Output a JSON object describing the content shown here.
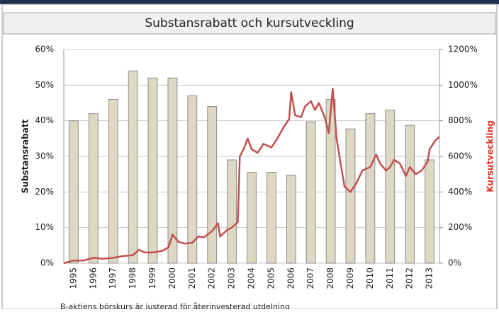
{
  "chart_data": {
    "type": "bar",
    "title": "Substansrabatt och kursutveckling",
    "y_label": "Substansrabatt",
    "y2_label": "Kursutveckling",
    "footnote": "B-aktiens börskurs är justerad för återinvesterad utdelning",
    "categories": [
      "1995",
      "1996",
      "1997",
      "1998",
      "1999",
      "2000",
      "2001",
      "2002",
      "2003",
      "2004",
      "2005",
      "2006",
      "2007",
      "2008",
      "2009",
      "2010",
      "2011",
      "2012",
      "2013"
    ],
    "xlim": [
      1994.5,
      2013.5
    ],
    "ylim": [
      0,
      60
    ],
    "yticks": [
      {
        "value": 0,
        "label": "0%"
      },
      {
        "value": 10,
        "label": "10%"
      },
      {
        "value": 20,
        "label": "20%"
      },
      {
        "value": 30,
        "label": "30%"
      },
      {
        "value": 40,
        "label": "40%"
      },
      {
        "value": 50,
        "label": "50%"
      },
      {
        "value": 60,
        "label": "60%"
      }
    ],
    "y2lim": [
      0,
      1200
    ],
    "y2ticks": [
      {
        "value": 0,
        "label": "0%"
      },
      {
        "value": 200,
        "label": "200%"
      },
      {
        "value": 400,
        "label": "400%"
      },
      {
        "value": 600,
        "label": "600%"
      },
      {
        "value": 800,
        "label": "800%"
      },
      {
        "value": 1000,
        "label": "1000%"
      },
      {
        "value": 1200,
        "label": "1200%"
      }
    ],
    "grid": true,
    "series": [
      {
        "name": "Substansrabatt",
        "type": "bar",
        "color": "#ddd8c3",
        "values": [
          40,
          42,
          46,
          54,
          52,
          52,
          47,
          44,
          29,
          25.5,
          25.5,
          24.7,
          39.7,
          46,
          37.7,
          42,
          43,
          38.7,
          29
        ]
      },
      {
        "name": "Kursutveckling",
        "type": "line",
        "axis": "y2",
        "color": "#c0504d",
        "x": [
          1994.5,
          1995.0,
          1995.5,
          1996.0,
          1996.5,
          1997.0,
          1997.5,
          1998.0,
          1998.3,
          1998.6,
          1999.0,
          1999.5,
          1999.8,
          2000.0,
          2000.3,
          2000.6,
          2001.0,
          2001.3,
          2001.6,
          2002.0,
          2002.3,
          2002.4,
          2002.8,
          2003.0,
          2003.3,
          2003.4,
          2003.6,
          2003.8,
          2004.0,
          2004.3,
          2004.6,
          2005.0,
          2005.3,
          2005.6,
          2005.9,
          2006.0,
          2006.2,
          2006.5,
          2006.7,
          2007.0,
          2007.2,
          2007.4,
          2007.7,
          2007.9,
          2008.1,
          2008.3,
          2008.5,
          2008.7,
          2009.0,
          2009.3,
          2009.6,
          2010.0,
          2010.3,
          2010.5,
          2010.8,
          2011.0,
          2011.2,
          2011.5,
          2011.8,
          2012.0,
          2012.3,
          2012.6,
          2012.9,
          2013.0,
          2013.3,
          2013.5
        ],
        "values": [
          0,
          15,
          15,
          30,
          25,
          30,
          40,
          45,
          75,
          60,
          60,
          70,
          90,
          160,
          120,
          110,
          115,
          150,
          145,
          180,
          225,
          150,
          190,
          200,
          230,
          600,
          640,
          700,
          640,
          620,
          670,
          650,
          700,
          760,
          810,
          960,
          830,
          820,
          880,
          910,
          860,
          900,
          820,
          730,
          980,
          700,
          560,
          430,
          400,
          450,
          520,
          540,
          610,
          560,
          520,
          540,
          580,
          560,
          490,
          540,
          500,
          520,
          570,
          640,
          690,
          710
        ]
      }
    ]
  }
}
